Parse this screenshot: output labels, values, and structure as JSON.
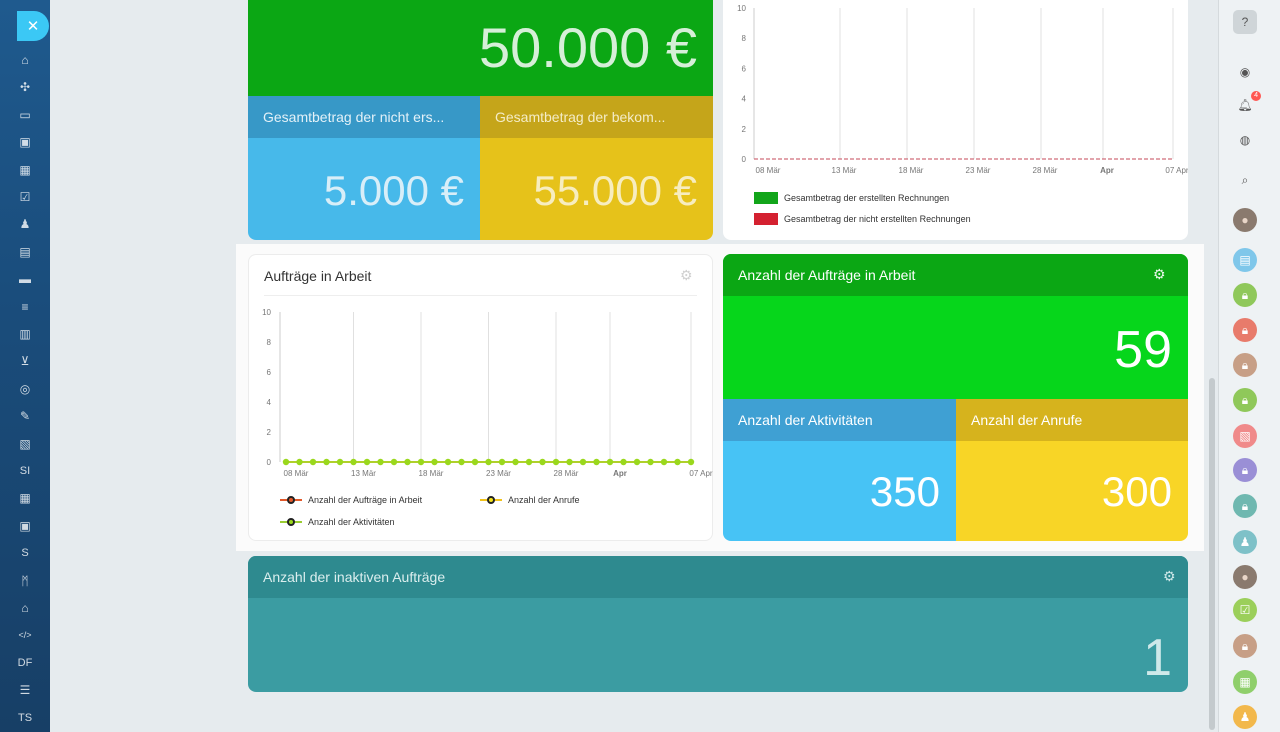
{
  "left_nav": {
    "close_icon": "close-icon",
    "items": [
      {
        "name": "home-icon",
        "text": ""
      },
      {
        "name": "puzzle-icon",
        "text": ""
      },
      {
        "name": "inbox-icon",
        "text": ""
      },
      {
        "name": "chat-icon",
        "text": ""
      },
      {
        "name": "calendar-icon",
        "text": ""
      },
      {
        "name": "tasks-icon",
        "text": ""
      },
      {
        "name": "group-icon",
        "text": ""
      },
      {
        "name": "document-icon",
        "text": ""
      },
      {
        "name": "drive-icon",
        "text": ""
      },
      {
        "name": "filter-icon",
        "text": ""
      },
      {
        "name": "chart-icon",
        "text": ""
      },
      {
        "name": "cart-icon",
        "text": ""
      },
      {
        "name": "target-icon",
        "text": ""
      },
      {
        "name": "sign-icon",
        "text": ""
      },
      {
        "name": "contact-card-icon",
        "text": ""
      },
      {
        "name": "si-label",
        "text": "SI"
      },
      {
        "name": "table-icon",
        "text": ""
      },
      {
        "name": "robot-icon",
        "text": ""
      },
      {
        "name": "s-label",
        "text": "S"
      },
      {
        "name": "m-logo-icon",
        "text": ""
      },
      {
        "name": "bank-icon",
        "text": ""
      },
      {
        "name": "code-icon",
        "text": ""
      },
      {
        "name": "df-label",
        "text": "DF"
      },
      {
        "name": "edit-list-icon",
        "text": ""
      },
      {
        "name": "ts-label",
        "text": "TS"
      }
    ]
  },
  "top_tiles": {
    "total_value": "50.000 €",
    "unpaid_title": "Gesamtbetrag der nicht ers...",
    "unpaid_value": "5.000 €",
    "received_title": "Gesamtbetrag der bekom...",
    "received_value": "55.000 €"
  },
  "invoice_chart": {
    "y_ticks": [
      "10",
      "8",
      "6",
      "4",
      "2",
      "0"
    ],
    "x_ticks": [
      "08 Mär",
      "13 Mär",
      "18 Mär",
      "23 Mär",
      "28 Mär",
      "Apr",
      "07 Apr"
    ],
    "legend": [
      {
        "label": "Gesamtbetrag der erstellten Rechnungen",
        "color": "#12a51a"
      },
      {
        "label": "Gesamtbetrag der nicht erstellten Rechnungen",
        "color": "#d42130"
      }
    ]
  },
  "orders_panel": {
    "title": "Aufträge in Arbeit",
    "legend": [
      {
        "label": "Anzahl der Aufträge in Arbeit",
        "line": "#e2592a",
        "dot": "#e2592a"
      },
      {
        "label": "Anzahl der Anrufe",
        "line": "#f1c21b",
        "dot": "#f1e21b"
      },
      {
        "label": "Anzahl der Aktivitäten",
        "line": "#9acd32",
        "dot": "#9ad81d"
      }
    ]
  },
  "chart_data": {
    "type": "line",
    "title": "Aufträge in Arbeit",
    "xlabel": "",
    "ylabel": "",
    "ylim": [
      0,
      10
    ],
    "y_ticks": [
      0,
      2,
      4,
      6,
      8,
      10
    ],
    "x_ticks": [
      "08 Mär",
      "13 Mär",
      "18 Mär",
      "23 Mär",
      "28 Mär",
      "Apr",
      "07 Apr"
    ],
    "x": [
      "08 Mär",
      "09 Mär",
      "10 Mär",
      "11 Mär",
      "12 Mär",
      "13 Mär",
      "14 Mär",
      "15 Mär",
      "16 Mär",
      "17 Mär",
      "18 Mär",
      "19 Mär",
      "20 Mär",
      "21 Mär",
      "22 Mär",
      "23 Mär",
      "24 Mär",
      "25 Mär",
      "26 Mär",
      "27 Mär",
      "28 Mär",
      "29 Mär",
      "30 Mär",
      "31 Mär",
      "Apr",
      "02 Apr",
      "03 Apr",
      "04 Apr",
      "05 Apr",
      "06 Apr",
      "07 Apr"
    ],
    "series": [
      {
        "name": "Anzahl der Aufträge in Arbeit",
        "color": "#e2592a",
        "values": [
          0,
          0,
          0,
          0,
          0,
          0,
          0,
          0,
          0,
          0,
          0,
          0,
          0,
          0,
          0,
          0,
          0,
          0,
          0,
          0,
          0,
          0,
          0,
          0,
          0,
          0,
          0,
          0,
          0,
          0,
          0
        ]
      },
      {
        "name": "Anzahl der Anrufe",
        "color": "#f1c21b",
        "values": [
          0,
          0,
          0,
          0,
          0,
          0,
          0,
          0,
          0,
          0,
          0,
          0,
          0,
          0,
          0,
          0,
          0,
          0,
          0,
          0,
          0,
          0,
          0,
          0,
          0,
          0,
          0,
          0,
          0,
          0,
          0
        ]
      },
      {
        "name": "Anzahl der Aktivitäten",
        "color": "#9ad81d",
        "values": [
          0,
          0,
          0,
          0,
          0,
          0,
          0,
          0,
          0,
          0,
          0,
          0,
          0,
          0,
          0,
          0,
          0,
          0,
          0,
          0,
          0,
          0,
          0,
          0,
          0,
          0,
          0,
          0,
          0,
          0,
          0
        ]
      }
    ],
    "grid": true,
    "legend_position": "bottom-left"
  },
  "count_tiles": {
    "orders_title": "Anzahl der Aufträge in Arbeit",
    "orders_value": "59",
    "activities_title": "Anzahl der Aktivitäten",
    "activities_value": "350",
    "calls_title": "Anzahl der Anrufe",
    "calls_value": "300"
  },
  "inactive_tile": {
    "title": "Anzahl der inaktiven Aufträge",
    "value": "1"
  },
  "right_nav": {
    "notification_count": "4",
    "items": [
      "help-icon",
      "activity-icon",
      "bell-icon",
      "openlines-icon",
      "search-icon",
      "avatar",
      "chat-bubble-icon",
      "lock-chat-icon",
      "lock-chat-icon",
      "lock-chat-icon",
      "lock-chat-icon",
      "contact-card-icon",
      "lock-chat-icon",
      "lock-chat-icon",
      "group-icon",
      "avatar",
      "task-icon",
      "lock-chat-icon",
      "calendar-icon",
      "group-icon"
    ]
  },
  "colors": {
    "green_dark": "#0ba714",
    "green": "#06d61b",
    "blue_dark": "#3798c7",
    "blue": "#47b9ea",
    "gold_dark": "#c5a51a",
    "gold": "#e6c21a",
    "yellow": "#f8d526",
    "teal_dark": "#2e8a8f",
    "teal": "#3ba4aa"
  }
}
